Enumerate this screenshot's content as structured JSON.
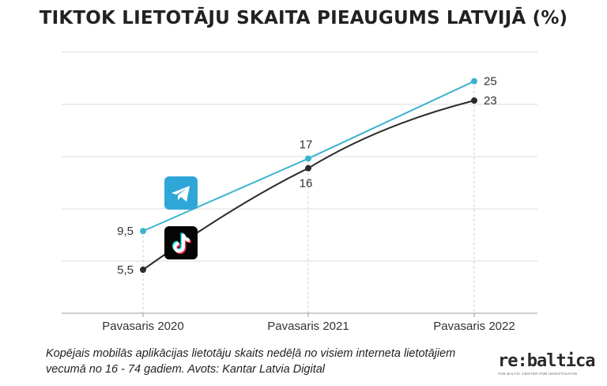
{
  "chart_data": {
    "type": "line",
    "title": "TIKTOK LIETOTĀJU SKAITA PIEAUGUMS LATVIJĀ (%)",
    "categories": [
      "Pavasaris 2020",
      "Pavasaris 2021",
      "Pavasaris 2022"
    ],
    "series": [
      {
        "icon": "telegram-icon",
        "color": "#3db3cf",
        "values": [
          9.5,
          17,
          25
        ],
        "labels": [
          "9,5",
          "17",
          "25"
        ]
      },
      {
        "icon": "tiktok-icon",
        "color": "#2b2b2b",
        "values": [
          5.5,
          16,
          23
        ],
        "labels": [
          "5,5",
          "16",
          "23"
        ]
      }
    ],
    "ylim": [
      1,
      28
    ],
    "grid": true,
    "xlabel": "",
    "ylabel": ""
  },
  "footnote": "Kopējais mobilās aplikācijas lietotāju skaits nedēļā no visiem interneta lietotājiem vecumā no 16 - 74 gadiem. Avots: Kantar Latvia Digital",
  "logo": {
    "text": "re:baltica",
    "tagline": "THE BALTIC CENTER FOR INVESTIGATIVE JOURNALISM"
  }
}
